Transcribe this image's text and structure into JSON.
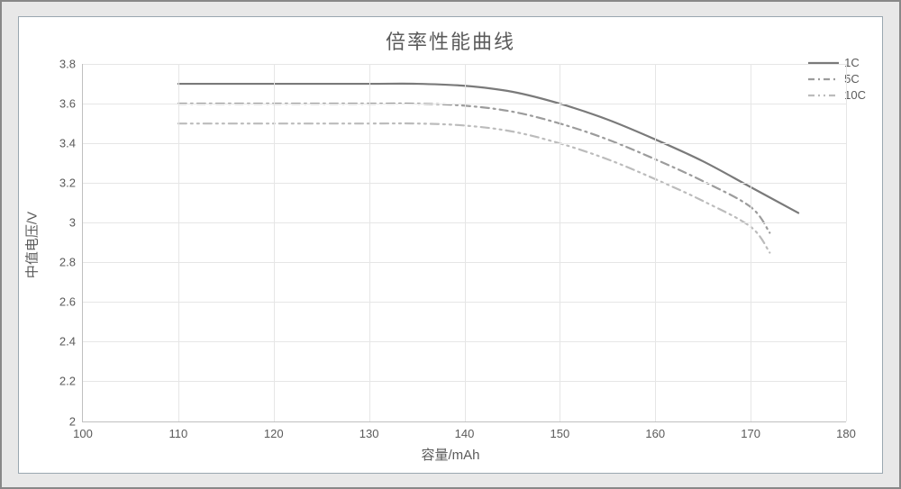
{
  "chart": {
    "type": "line",
    "title": "倍率性能曲线",
    "title_fontsize": 22,
    "xlabel": "容量/mAh",
    "ylabel": "中值电压/V",
    "label_fontsize": 15,
    "xlim": [
      100,
      180
    ],
    "ylim": [
      2.0,
      3.8
    ],
    "xticks": [
      100,
      110,
      120,
      130,
      140,
      150,
      160,
      170,
      180
    ],
    "yticks": [
      2.0,
      2.2,
      2.4,
      2.6,
      2.8,
      3.0,
      3.2,
      3.4,
      3.6,
      3.8
    ],
    "ytick_labels": [
      "2",
      "2.2",
      "2.4",
      "2.6",
      "2.8",
      "3",
      "3.2",
      "3.4",
      "3.6",
      "3.8"
    ],
    "background_color": "#ffffff",
    "grid_color": "#e6e6e6",
    "axis_color": "#bfbfbf",
    "legend_position": "top-right",
    "series": [
      {
        "name": "1C",
        "color": "#7a7a7a",
        "width": 2.2,
        "dash": "solid",
        "x": [
          110,
          120,
          130,
          135,
          140,
          145,
          150,
          155,
          160,
          165,
          170,
          175
        ],
        "y": [
          3.7,
          3.7,
          3.7,
          3.7,
          3.69,
          3.66,
          3.6,
          3.52,
          3.42,
          3.31,
          3.18,
          3.05
        ]
      },
      {
        "name": "5C",
        "color": "#9c9c9c",
        "width": 2.2,
        "dash": "dash-dot",
        "x": [
          110,
          120,
          130,
          135,
          140,
          145,
          150,
          155,
          160,
          165,
          170,
          172
        ],
        "y": [
          3.6,
          3.6,
          3.6,
          3.6,
          3.59,
          3.56,
          3.5,
          3.42,
          3.32,
          3.21,
          3.08,
          2.95
        ]
      },
      {
        "name": "10C",
        "color": "#bcbcbc",
        "width": 2.2,
        "dash": "dash-dot-dot",
        "x": [
          110,
          120,
          130,
          135,
          140,
          145,
          150,
          155,
          160,
          165,
          170,
          172
        ],
        "y": [
          3.5,
          3.5,
          3.5,
          3.5,
          3.49,
          3.46,
          3.4,
          3.32,
          3.22,
          3.11,
          2.98,
          2.85
        ]
      }
    ]
  }
}
